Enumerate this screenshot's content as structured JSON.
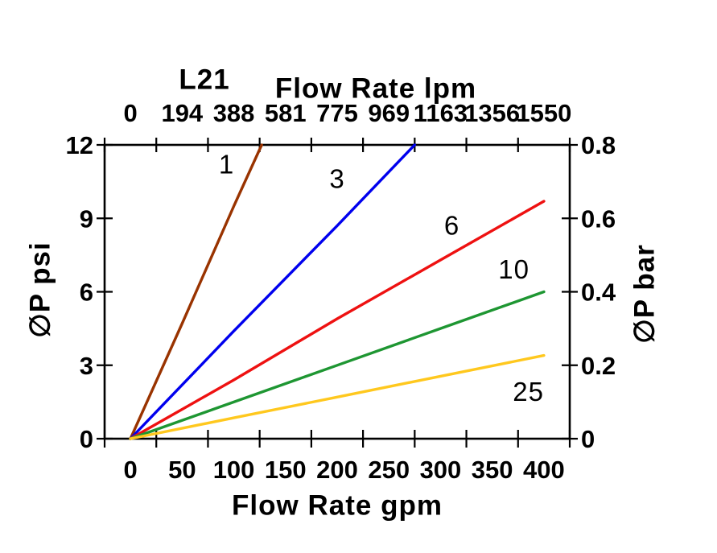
{
  "chart_data": {
    "type": "line",
    "title": "L21",
    "grid": false,
    "legend": "labels-on-lines",
    "axes": {
      "top": {
        "label": "Flow Rate lpm",
        "ticks": [
          "0",
          "194",
          "388",
          "581",
          "775",
          "969",
          "1163",
          "1356",
          "1550"
        ]
      },
      "bottom": {
        "label": "Flow Rate gpm",
        "ticks": [
          "0",
          "50",
          "100",
          "150",
          "200",
          "250",
          "300",
          "350",
          "400"
        ],
        "range_gpm": [
          0,
          400
        ]
      },
      "left": {
        "label": "∅P psi",
        "ticks": [
          "0",
          "3",
          "6",
          "9",
          "12"
        ],
        "range_psi": [
          0,
          12
        ]
      },
      "right": {
        "label": "∅P bar",
        "ticks": [
          "0",
          "0.2",
          "0.4",
          "0.6",
          "0.8"
        ],
        "range_bar": [
          0,
          0.8
        ]
      }
    },
    "series": [
      {
        "name": "1",
        "color": "#993300",
        "points_gpm_psi": [
          [
            0,
            0
          ],
          [
            50,
            4.7
          ],
          [
            100,
            9.5
          ],
          [
            127,
            12
          ]
        ],
        "label_at_gpm_psi": [
          93,
          11.2
        ]
      },
      {
        "name": "3",
        "color": "#0000EE",
        "points_gpm_psi": [
          [
            0,
            0
          ],
          [
            100,
            4.4
          ],
          [
            200,
            8.7
          ],
          [
            275,
            12
          ]
        ],
        "label_at_gpm_psi": [
          200,
          10.6
        ]
      },
      {
        "name": "6",
        "color": "#EE1111",
        "points_gpm_psi": [
          [
            0,
            0
          ],
          [
            100,
            2.4
          ],
          [
            200,
            4.9
          ],
          [
            300,
            7.3
          ],
          [
            400,
            9.7
          ]
        ],
        "label_at_gpm_psi": [
          311,
          8.7
        ]
      },
      {
        "name": "10",
        "color": "#1E9632",
        "points_gpm_psi": [
          [
            0,
            0
          ],
          [
            100,
            1.5
          ],
          [
            200,
            3.0
          ],
          [
            300,
            4.5
          ],
          [
            400,
            6.0
          ]
        ],
        "label_at_gpm_psi": [
          371,
          6.9
        ]
      },
      {
        "name": "25",
        "color": "#FFC81E",
        "points_gpm_psi": [
          [
            0,
            0
          ],
          [
            100,
            0.85
          ],
          [
            200,
            1.7
          ],
          [
            300,
            2.55
          ],
          [
            400,
            3.4
          ]
        ],
        "label_at_gpm_psi": [
          385,
          1.9
        ]
      }
    ]
  }
}
